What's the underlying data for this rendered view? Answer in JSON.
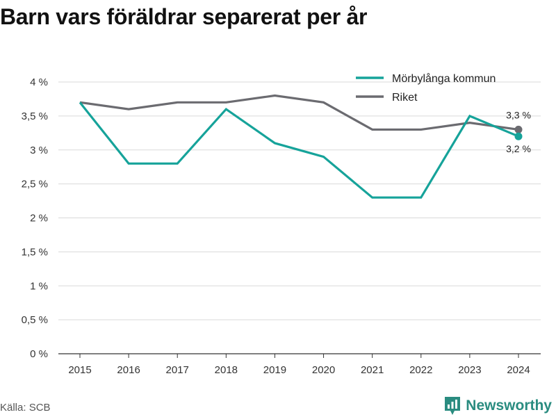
{
  "title": "Barn vars föräldrar separerat per år",
  "source": "Källa: SCB",
  "brand": {
    "name": "Newsworthy",
    "icon": "newsworthy-logo-icon",
    "color": "#2a8c80"
  },
  "chart_data": {
    "type": "line",
    "x": [
      "2015",
      "2016",
      "2017",
      "2018",
      "2019",
      "2020",
      "2021",
      "2022",
      "2023",
      "2024"
    ],
    "ylim": [
      0,
      4
    ],
    "yticks": [
      0,
      0.5,
      1,
      1.5,
      2,
      2.5,
      3,
      3.5,
      4
    ],
    "ytick_labels": [
      "0 %",
      "0,5 %",
      "1 %",
      "1,5 %",
      "2 %",
      "2,5 %",
      "3 %",
      "3,5 %",
      "4 %"
    ],
    "grid": true,
    "legend": "top-right",
    "series": [
      {
        "name": "Mörbylånga kommun",
        "color": "#16a39a",
        "values": [
          3.7,
          2.8,
          2.8,
          3.6,
          3.1,
          2.9,
          2.3,
          2.3,
          3.5,
          3.2
        ],
        "end_label": "3,2 %"
      },
      {
        "name": "Riket",
        "color": "#6b6b70",
        "values": [
          3.7,
          3.6,
          3.7,
          3.7,
          3.8,
          3.7,
          3.3,
          3.3,
          3.4,
          3.3
        ],
        "end_label": "3,3 %"
      }
    ]
  }
}
